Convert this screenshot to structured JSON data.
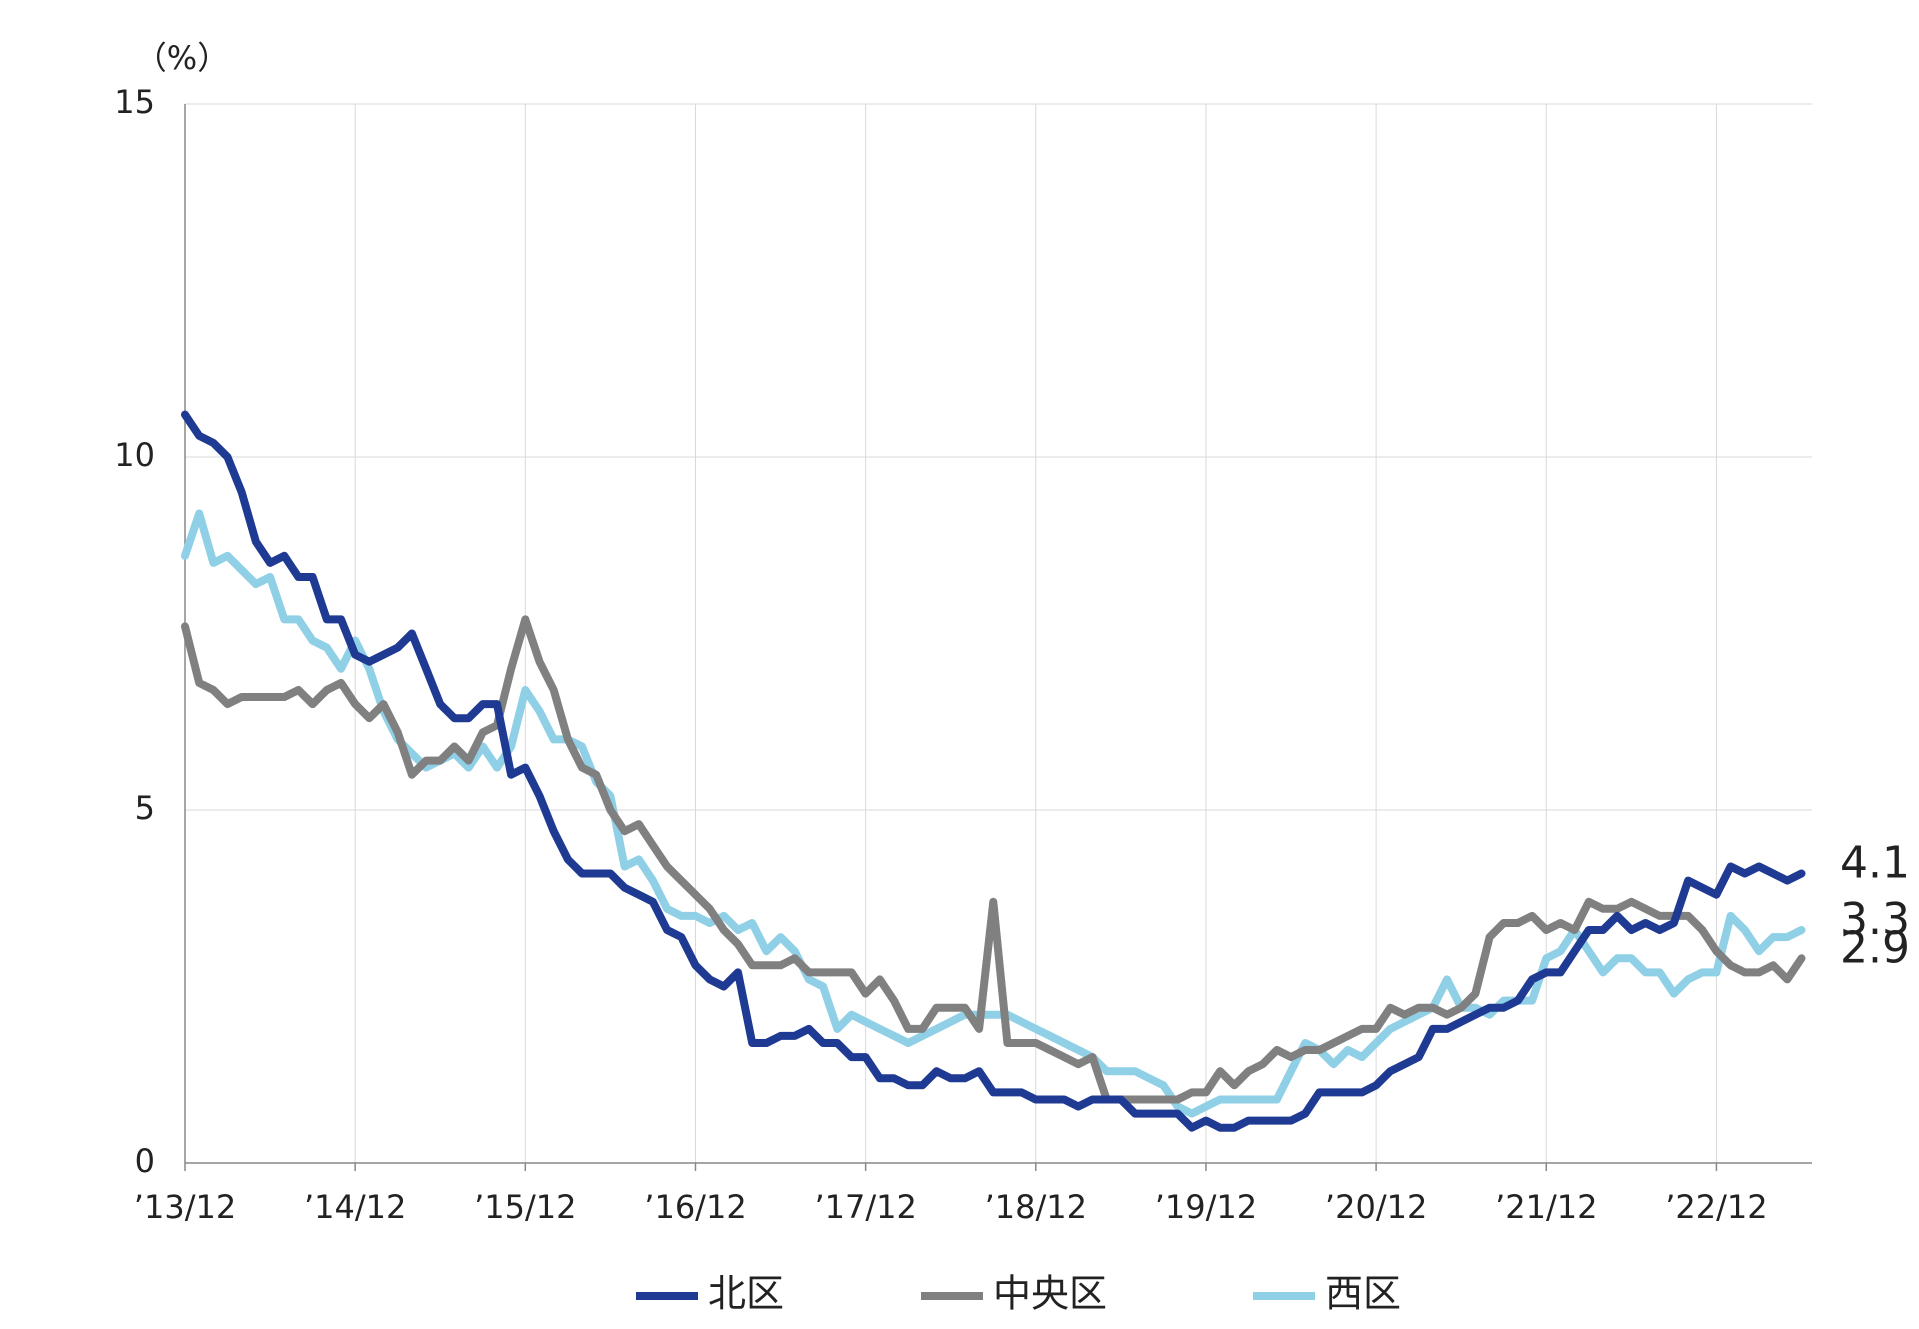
{
  "chart_data": {
    "type": "line",
    "y_label": "（%）",
    "categories": [
      "’13/12",
      null,
      null,
      null,
      null,
      null,
      null,
      null,
      null,
      null,
      null,
      null,
      "’14/12",
      null,
      null,
      null,
      null,
      null,
      null,
      null,
      null,
      null,
      null,
      null,
      "’15/12",
      null,
      null,
      null,
      null,
      null,
      null,
      null,
      null,
      null,
      null,
      null,
      "’16/12",
      null,
      null,
      null,
      null,
      null,
      null,
      null,
      null,
      null,
      null,
      null,
      "’17/12",
      null,
      null,
      null,
      null,
      null,
      null,
      null,
      null,
      null,
      null,
      null,
      "’18/12",
      null,
      null,
      null,
      null,
      null,
      null,
      null,
      null,
      null,
      null,
      null,
      "’19/12",
      null,
      null,
      null,
      null,
      null,
      null,
      null,
      null,
      null,
      null,
      null,
      "’20/12",
      null,
      null,
      null,
      null,
      null,
      null,
      null,
      null,
      null,
      null,
      null,
      "’21/12",
      null,
      null,
      null,
      null,
      null,
      null,
      null,
      null,
      null,
      null,
      null,
      "’22/12",
      null,
      null,
      null,
      null,
      null,
      null
    ],
    "series": [
      {
        "name": "北区",
        "color": "#1f3a93",
        "values": [
          10.6,
          10.3,
          10.2,
          10.0,
          9.5,
          8.8,
          8.5,
          8.6,
          8.3,
          8.3,
          7.7,
          7.7,
          7.2,
          7.1,
          7.2,
          7.3,
          7.5,
          7.0,
          6.5,
          6.3,
          6.3,
          6.5,
          6.5,
          5.5,
          5.6,
          5.2,
          4.7,
          4.3,
          4.1,
          4.1,
          4.1,
          3.9,
          3.8,
          3.7,
          3.3,
          3.2,
          2.8,
          2.6,
          2.5,
          2.7,
          1.7,
          1.7,
          1.8,
          1.8,
          1.9,
          1.7,
          1.7,
          1.5,
          1.5,
          1.2,
          1.2,
          1.1,
          1.1,
          1.3,
          1.2,
          1.2,
          1.3,
          1.0,
          1.0,
          1.0,
          0.9,
          0.9,
          0.9,
          0.8,
          0.9,
          0.9,
          0.9,
          0.7,
          0.7,
          0.7,
          0.7,
          0.5,
          0.6,
          0.5,
          0.5,
          0.6,
          0.6,
          0.6,
          0.6,
          0.7,
          1.0,
          1.0,
          1.0,
          1.0,
          1.1,
          1.3,
          1.4,
          1.5,
          1.9,
          1.9,
          2.0,
          2.1,
          2.2,
          2.2,
          2.3,
          2.6,
          2.7,
          2.7,
          3.0,
          3.3,
          3.3,
          3.5,
          3.3,
          3.4,
          3.3,
          3.4,
          4.0,
          3.9,
          3.8,
          4.2,
          4.1,
          4.2,
          4.1,
          4.0,
          4.1
        ]
      },
      {
        "name": "中央区",
        "color": "#808080",
        "values": [
          7.6,
          6.8,
          6.7,
          6.5,
          6.6,
          6.6,
          6.6,
          6.6,
          6.7,
          6.5,
          6.7,
          6.8,
          6.5,
          6.3,
          6.5,
          6.1,
          5.5,
          5.7,
          5.7,
          5.9,
          5.7,
          6.1,
          6.2,
          7.0,
          7.7,
          7.1,
          6.7,
          6.0,
          5.6,
          5.5,
          5.0,
          4.7,
          4.8,
          4.5,
          4.2,
          4.0,
          3.8,
          3.6,
          3.3,
          3.1,
          2.8,
          2.8,
          2.8,
          2.9,
          2.7,
          2.7,
          2.7,
          2.7,
          2.4,
          2.6,
          2.3,
          1.9,
          1.9,
          2.2,
          2.2,
          2.2,
          1.9,
          3.7,
          1.7,
          1.7,
          1.7,
          1.6,
          1.5,
          1.4,
          1.5,
          0.9,
          0.9,
          0.9,
          0.9,
          0.9,
          0.9,
          1.0,
          1.0,
          1.3,
          1.1,
          1.3,
          1.4,
          1.6,
          1.5,
          1.6,
          1.6,
          1.7,
          1.8,
          1.9,
          1.9,
          2.2,
          2.1,
          2.2,
          2.2,
          2.1,
          2.2,
          2.4,
          3.2,
          3.4,
          3.4,
          3.5,
          3.3,
          3.4,
          3.3,
          3.7,
          3.6,
          3.6,
          3.7,
          3.6,
          3.5,
          3.5,
          3.5,
          3.3,
          3.0,
          2.8,
          2.7,
          2.7,
          2.8,
          2.6,
          2.9
        ]
      },
      {
        "name": "西区",
        "color": "#8fd0e6",
        "values": [
          8.6,
          9.2,
          8.5,
          8.6,
          8.4,
          8.2,
          8.3,
          7.7,
          7.7,
          7.4,
          7.3,
          7.0,
          7.4,
          7.0,
          6.4,
          6.0,
          5.8,
          5.6,
          5.7,
          5.8,
          5.6,
          5.9,
          5.6,
          5.9,
          6.7,
          6.4,
          6.0,
          6.0,
          5.9,
          5.4,
          5.2,
          4.2,
          4.3,
          4.0,
          3.6,
          3.5,
          3.5,
          3.4,
          3.5,
          3.3,
          3.4,
          3.0,
          3.2,
          3.0,
          2.6,
          2.5,
          1.9,
          2.1,
          2.0,
          1.9,
          1.8,
          1.7,
          1.8,
          1.9,
          2.0,
          2.1,
          2.1,
          2.1,
          2.1,
          2.0,
          1.9,
          1.8,
          1.7,
          1.6,
          1.5,
          1.3,
          1.3,
          1.3,
          1.2,
          1.1,
          0.8,
          0.7,
          0.8,
          0.9,
          0.9,
          0.9,
          0.9,
          0.9,
          1.3,
          1.7,
          1.6,
          1.4,
          1.6,
          1.5,
          1.7,
          1.9,
          2.0,
          2.1,
          2.2,
          2.6,
          2.2,
          2.2,
          2.1,
          2.3,
          2.3,
          2.3,
          2.9,
          3.0,
          3.3,
          3.0,
          2.7,
          2.9,
          2.9,
          2.7,
          2.7,
          2.4,
          2.6,
          2.7,
          2.7,
          3.5,
          3.3,
          3.0,
          3.2,
          3.2,
          3.3
        ]
      }
    ],
    "ylim": [
      0,
      15
    ],
    "yticks": [
      0,
      5,
      10,
      15
    ],
    "grid": true,
    "legend": "bottom"
  }
}
